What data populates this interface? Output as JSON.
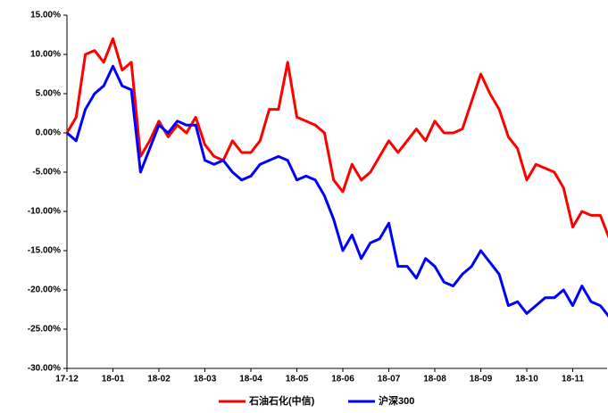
{
  "chart_data": {
    "type": "line",
    "categories": [
      "17-12",
      null,
      null,
      null,
      null,
      "18-01",
      null,
      null,
      null,
      null,
      "18-02",
      null,
      null,
      null,
      null,
      "18-03",
      null,
      null,
      null,
      null,
      "18-04",
      null,
      null,
      null,
      null,
      "18-05",
      null,
      null,
      null,
      null,
      "18-06",
      null,
      null,
      null,
      null,
      "18-07",
      null,
      null,
      null,
      null,
      "18-08",
      null,
      null,
      null,
      null,
      "18-09",
      null,
      null,
      null,
      null,
      "18-10",
      null,
      null,
      null,
      null,
      "18-11",
      null,
      null,
      null,
      null
    ],
    "series": [
      {
        "name": "石油石化(中信)",
        "color": "#ff0000",
        "values": [
          0,
          2,
          10,
          10.5,
          9,
          12,
          8,
          9,
          -3,
          -1,
          1.5,
          -0.5,
          1,
          0,
          2,
          -1.5,
          -3,
          -3.5,
          -1,
          -2.5,
          -2.5,
          -1,
          3,
          3,
          9,
          2,
          1.5,
          1,
          0,
          -6,
          -7.5,
          -4,
          -6,
          -5,
          -3,
          -1,
          -2.5,
          -1,
          0.5,
          -1,
          1.5,
          0,
          0,
          0.5,
          4,
          7.5,
          5,
          3,
          -0.5,
          -2,
          -6,
          -4,
          -4.5,
          -5,
          -7,
          -12,
          -10,
          -10.5,
          -10.5,
          -13.5
        ]
      },
      {
        "name": "沪深300",
        "color": "#0000ff",
        "values": [
          0,
          -1,
          3,
          5,
          6,
          8.5,
          6,
          5.5,
          -5,
          -2,
          1,
          0,
          1.5,
          1,
          1,
          -3.5,
          -4,
          -3.5,
          -5,
          -6,
          -5.5,
          -4,
          -3.5,
          -3,
          -3.5,
          -6,
          -5.5,
          -6,
          -8,
          -11,
          -15,
          -13,
          -16,
          -14,
          -13.5,
          -11.5,
          -17,
          -17,
          -18.5,
          -16,
          -17,
          -19,
          -19.5,
          -18,
          -17,
          -15,
          -16.5,
          -18,
          -22,
          -21.5,
          -23,
          -22,
          -21,
          -21,
          -20,
          -22,
          -19.5,
          -21.5,
          -22,
          -23.5
        ]
      }
    ],
    "ylim": [
      -30,
      15
    ],
    "yticks": [
      {
        "value": 15,
        "label": "15.00%"
      },
      {
        "value": 10,
        "label": "10.00%"
      },
      {
        "value": 5,
        "label": "5.00%"
      },
      {
        "value": 0,
        "label": "0.00%"
      },
      {
        "value": -5,
        "label": "-5.00%"
      },
      {
        "value": -10,
        "label": "-10.00%"
      },
      {
        "value": -15,
        "label": "-15.00%"
      },
      {
        "value": -20,
        "label": "-20.00%"
      },
      {
        "value": -25,
        "label": "-25.00%"
      },
      {
        "value": -30,
        "label": "-30.00%"
      }
    ],
    "legend": "bottom"
  }
}
